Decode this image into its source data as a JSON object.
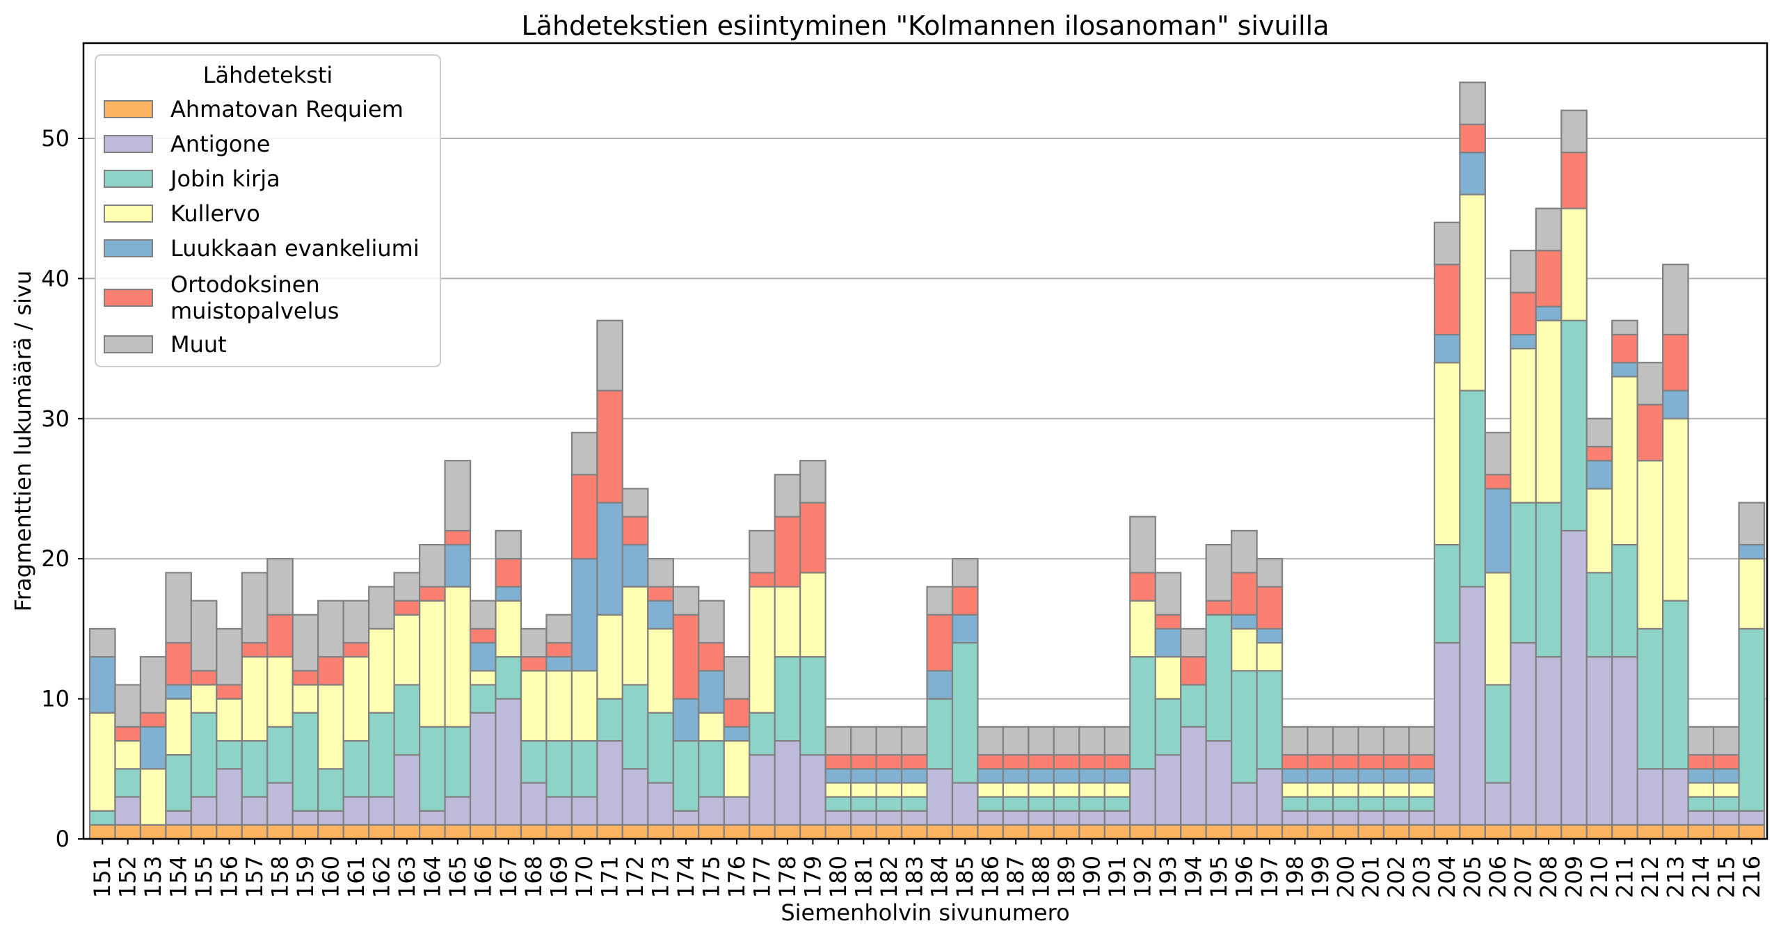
{
  "chart_data": {
    "type": "bar",
    "stacked": true,
    "title": "Lähdetekstien esiintyminen \"Kolmannen ilosanoman\" sivuilla",
    "xlabel": "Siemenholvin sivunumero",
    "ylabel": "Fragmenttien lukumäärä / sivu",
    "ylim": [
      0,
      56.7
    ],
    "yticks": [
      0,
      10,
      20,
      30,
      40,
      50
    ],
    "grid": "horizontal",
    "legend": {
      "title": "Lähdeteksti",
      "placement": "top-left"
    },
    "categories": [
      "151",
      "152",
      "153",
      "154",
      "155",
      "156",
      "157",
      "158",
      "159",
      "160",
      "161",
      "162",
      "163",
      "164",
      "165",
      "166",
      "167",
      "168",
      "169",
      "170",
      "171",
      "172",
      "173",
      "174",
      "175",
      "176",
      "177",
      "178",
      "179",
      "180",
      "181",
      "182",
      "183",
      "184",
      "185",
      "186",
      "187",
      "188",
      "189",
      "190",
      "191",
      "192",
      "193",
      "194",
      "195",
      "196",
      "197",
      "198",
      "199",
      "200",
      "201",
      "202",
      "203",
      "204",
      "205",
      "206",
      "207",
      "208",
      "209",
      "210",
      "211",
      "212",
      "213",
      "214",
      "215",
      "216"
    ],
    "series": [
      {
        "name": "Ahmatovan Requiem",
        "color": "#fdb462",
        "values": [
          1,
          1,
          1,
          1,
          1,
          1,
          1,
          1,
          1,
          1,
          1,
          1,
          1,
          1,
          1,
          1,
          1,
          1,
          1,
          1,
          1,
          1,
          1,
          1,
          1,
          1,
          1,
          1,
          1,
          1,
          1,
          1,
          1,
          1,
          1,
          1,
          1,
          1,
          1,
          1,
          1,
          1,
          1,
          1,
          1,
          1,
          1,
          1,
          1,
          1,
          1,
          1,
          1,
          1,
          1,
          1,
          1,
          1,
          1,
          1,
          1,
          1,
          1,
          1,
          1,
          1
        ]
      },
      {
        "name": "Antigone",
        "color": "#bebada",
        "values": [
          0,
          2,
          0,
          1,
          2,
          4,
          2,
          3,
          1,
          1,
          2,
          2,
          5,
          1,
          2,
          8,
          9,
          3,
          2,
          2,
          6,
          4,
          3,
          1,
          2,
          2,
          5,
          6,
          5,
          1,
          1,
          1,
          1,
          4,
          3,
          1,
          1,
          1,
          1,
          1,
          1,
          4,
          5,
          7,
          6,
          3,
          4,
          1,
          1,
          1,
          1,
          1,
          1,
          13,
          17,
          3,
          13,
          12,
          21,
          12,
          12,
          4,
          4,
          1,
          1,
          1
        ]
      },
      {
        "name": "Jobin kirja",
        "color": "#8dd3c7",
        "values": [
          1,
          2,
          0,
          4,
          6,
          2,
          4,
          4,
          7,
          3,
          4,
          6,
          5,
          6,
          5,
          2,
          3,
          3,
          4,
          4,
          3,
          6,
          5,
          5,
          4,
          0,
          3,
          6,
          7,
          1,
          1,
          1,
          1,
          5,
          10,
          1,
          1,
          1,
          1,
          1,
          1,
          8,
          4,
          3,
          9,
          8,
          7,
          1,
          1,
          1,
          1,
          1,
          1,
          7,
          14,
          7,
          10,
          11,
          15,
          6,
          8,
          10,
          12,
          1,
          1,
          13
        ]
      },
      {
        "name": "Kullervo",
        "color": "#ffffb3",
        "values": [
          7,
          2,
          4,
          4,
          2,
          3,
          6,
          5,
          2,
          6,
          6,
          6,
          5,
          9,
          10,
          1,
          4,
          5,
          5,
          5,
          6,
          7,
          6,
          0,
          2,
          4,
          9,
          5,
          6,
          1,
          1,
          1,
          1,
          0,
          0,
          1,
          1,
          1,
          1,
          1,
          1,
          4,
          3,
          0,
          0,
          3,
          2,
          1,
          1,
          1,
          1,
          1,
          1,
          13,
          14,
          8,
          11,
          13,
          8,
          6,
          12,
          12,
          13,
          1,
          1,
          5
        ]
      },
      {
        "name": "Luukkaan evankeliumi",
        "color": "#80b1d3",
        "values": [
          4,
          0,
          3,
          1,
          0,
          0,
          0,
          0,
          0,
          0,
          0,
          0,
          0,
          0,
          3,
          2,
          1,
          0,
          1,
          8,
          8,
          3,
          2,
          3,
          3,
          1,
          0,
          0,
          0,
          1,
          1,
          1,
          1,
          2,
          2,
          1,
          1,
          1,
          1,
          1,
          1,
          0,
          2,
          0,
          0,
          1,
          1,
          1,
          1,
          1,
          1,
          1,
          1,
          2,
          3,
          6,
          1,
          1,
          0,
          2,
          1,
          0,
          2,
          1,
          1,
          1
        ]
      },
      {
        "name": "Ortodoksinen\nmuistopalvelus",
        "color": "#fb8072",
        "values": [
          0,
          1,
          1,
          3,
          1,
          1,
          1,
          3,
          1,
          2,
          1,
          0,
          1,
          1,
          1,
          1,
          2,
          1,
          1,
          6,
          8,
          2,
          1,
          6,
          2,
          2,
          1,
          5,
          5,
          1,
          1,
          1,
          1,
          4,
          2,
          1,
          1,
          1,
          1,
          1,
          1,
          2,
          1,
          2,
          1,
          3,
          3,
          1,
          1,
          1,
          1,
          1,
          1,
          5,
          2,
          1,
          3,
          4,
          4,
          1,
          2,
          4,
          4,
          1,
          1,
          0
        ]
      },
      {
        "name": "Muut",
        "color": "#c0c0c0",
        "values": [
          2,
          3,
          4,
          5,
          5,
          4,
          5,
          4,
          4,
          4,
          3,
          3,
          2,
          3,
          5,
          2,
          2,
          2,
          2,
          3,
          5,
          2,
          2,
          2,
          3,
          3,
          3,
          3,
          3,
          2,
          2,
          2,
          2,
          2,
          2,
          2,
          2,
          2,
          2,
          2,
          2,
          4,
          3,
          2,
          4,
          3,
          2,
          2,
          2,
          2,
          2,
          2,
          2,
          3,
          3,
          3,
          3,
          3,
          3,
          2,
          1,
          3,
          5,
          2,
          2,
          3
        ]
      }
    ]
  }
}
